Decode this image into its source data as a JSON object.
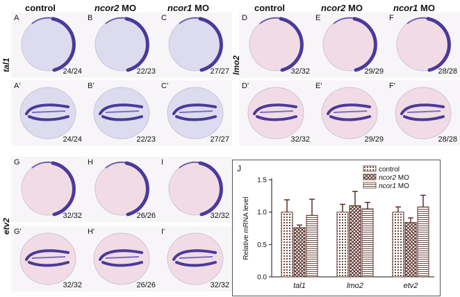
{
  "columns": [
    {
      "id": "A",
      "plain": "control",
      "italic": "",
      "suffix": ""
    },
    {
      "id": "B",
      "plain": "",
      "italic": "ncor2",
      "suffix": " MO"
    },
    {
      "id": "C",
      "plain": "",
      "italic": "ncor1",
      "suffix": " MO"
    },
    {
      "id": "D",
      "plain": "control",
      "italic": "",
      "suffix": ""
    },
    {
      "id": "E",
      "plain": "",
      "italic": "ncor2",
      "suffix": " MO"
    },
    {
      "id": "F",
      "plain": "",
      "italic": "ncor1",
      "suffix": " MO"
    }
  ],
  "row_labels": {
    "tal1": "tal1",
    "lmo2": "lmo2",
    "etv2": "etv2"
  },
  "panels": [
    {
      "label": "A",
      "count": "24/24",
      "view": "lateral",
      "tint": "blue"
    },
    {
      "label": "B",
      "count": "22/23",
      "view": "lateral",
      "tint": "blue"
    },
    {
      "label": "C",
      "count": "27/27",
      "view": "lateral",
      "tint": "blue"
    },
    {
      "label": "D",
      "count": "32/32",
      "view": "lateral",
      "tint": "pink"
    },
    {
      "label": "E",
      "count": "29/29",
      "view": "lateral",
      "tint": "pink"
    },
    {
      "label": "F",
      "count": "28/28",
      "view": "lateral",
      "tint": "pink"
    },
    {
      "label": "A'",
      "count": "24/24",
      "view": "dorsal",
      "tint": "blue"
    },
    {
      "label": "B'",
      "count": "22/23",
      "view": "dorsal",
      "tint": "blue"
    },
    {
      "label": "C'",
      "count": "27/27",
      "view": "dorsal",
      "tint": "blue"
    },
    {
      "label": "D'",
      "count": "32/32",
      "view": "dorsal",
      "tint": "pink"
    },
    {
      "label": "E'",
      "count": "29/29",
      "view": "dorsal",
      "tint": "pink"
    },
    {
      "label": "F'",
      "count": "28/28",
      "view": "dorsal",
      "tint": "pink"
    },
    {
      "label": "G",
      "count": "32/32",
      "view": "lateral",
      "tint": "pink"
    },
    {
      "label": "H",
      "count": "26/26",
      "view": "lateral",
      "tint": "pink"
    },
    {
      "label": "I",
      "count": "32/32",
      "view": "lateral",
      "tint": "pink"
    },
    {
      "label": "G'",
      "count": "32/32",
      "view": "dorsal",
      "tint": "pink"
    },
    {
      "label": "H'",
      "count": "26/26",
      "view": "dorsal",
      "tint": "pink"
    },
    {
      "label": "I'",
      "count": "32/32",
      "view": "dorsal",
      "tint": "pink"
    }
  ],
  "colors": {
    "stain": "#4a3a9a",
    "blue_bg": "#dcdcee",
    "pink_bg": "#f1dce6",
    "bar_edge": "#5a3028"
  },
  "chart_data": {
    "type": "bar",
    "panel_label": "J",
    "categories": [
      "tal1",
      "lmo2",
      "etv2"
    ],
    "series": [
      {
        "name": "control",
        "values": [
          1.0,
          1.0,
          1.0
        ],
        "errors": [
          0.19,
          0.12,
          0.08
        ],
        "pattern": "dots"
      },
      {
        "name": "ncor2 MO",
        "values": [
          0.76,
          1.1,
          0.84
        ],
        "errors": [
          0.04,
          0.22,
          0.07
        ],
        "pattern": "checker"
      },
      {
        "name": "ncor1 MO",
        "values": [
          0.95,
          1.05,
          1.08
        ],
        "errors": [
          0.25,
          0.1,
          0.18
        ],
        "pattern": "hlines"
      }
    ],
    "legend_labels": [
      {
        "plain": "control",
        "italic": "",
        "suffix": ""
      },
      {
        "plain": "",
        "italic": "ncor2",
        "suffix": " MO"
      },
      {
        "plain": "",
        "italic": "ncor1",
        "suffix": " MO"
      }
    ],
    "ylabel": "Relative mRNA level",
    "xlabel": "",
    "ylim": [
      0,
      1.5
    ],
    "yticks": [
      "0.0",
      "0.5",
      "1.0",
      "1.5"
    ],
    "legend_position": "top-right",
    "grid": false
  }
}
